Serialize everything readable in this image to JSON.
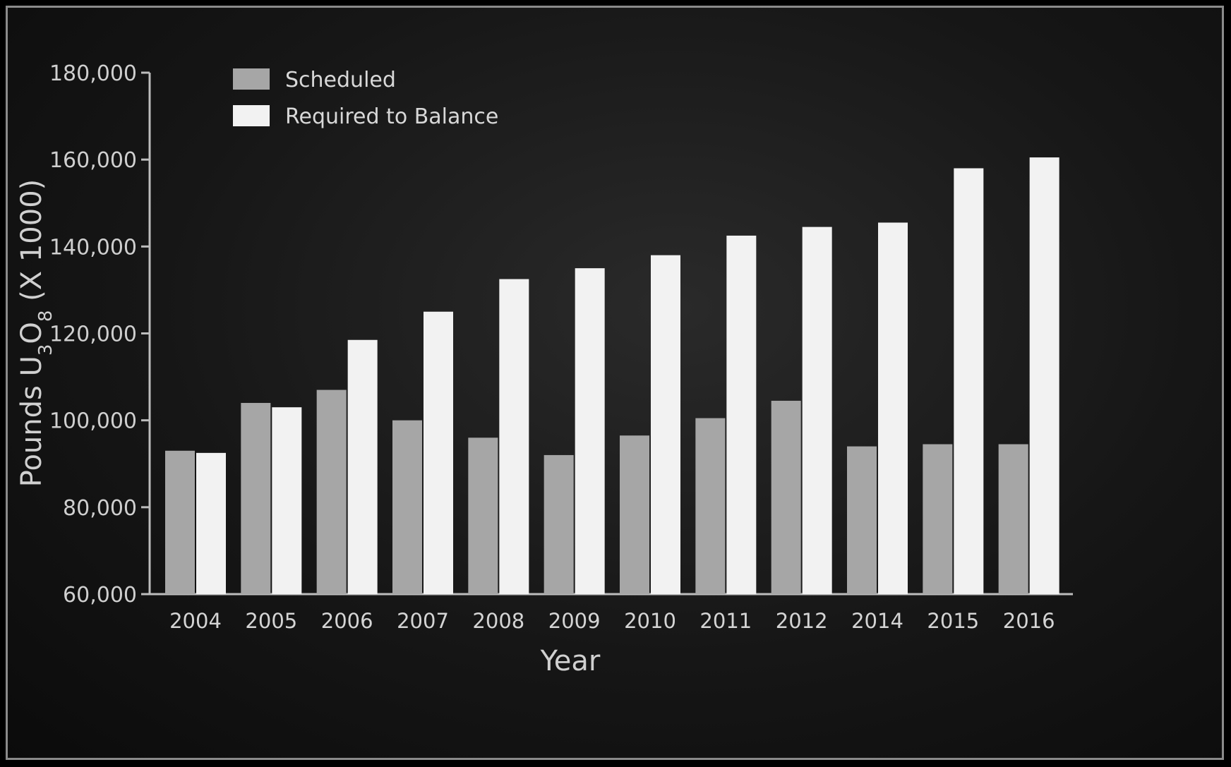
{
  "chart_data": {
    "type": "bar",
    "xlabel": "Year",
    "ylabel": {
      "prefix": "Pounds U",
      "sub1": "3",
      "mid": "O",
      "sub2": "8",
      "suffix": " (X 1000)"
    },
    "ylim": [
      60000,
      180000
    ],
    "yticks": [
      "60,000",
      "80,000",
      "100,000",
      "120,000",
      "140,000",
      "160,000",
      "180,000"
    ],
    "ytick_values": [
      60000,
      80000,
      100000,
      120000,
      140000,
      160000,
      180000
    ],
    "grid": false,
    "legend_position": "top-left",
    "categories": [
      "2004",
      "2005",
      "2006",
      "2007",
      "2008",
      "2009",
      "2010",
      "2011",
      "2012",
      "2014",
      "2015",
      "2016"
    ],
    "series": [
      {
        "name": "Scheduled",
        "color": "#a6a6a6",
        "values": [
          93000,
          104000,
          107000,
          100000,
          96000,
          92000,
          96500,
          100500,
          104500,
          94000,
          94500,
          94500
        ]
      },
      {
        "name": "Required to Balance",
        "color": "#f2f2f2",
        "values": [
          92500,
          103000,
          118500,
          125000,
          132500,
          135000,
          138000,
          142500,
          144500,
          145500,
          158000,
          160500
        ]
      }
    ]
  }
}
